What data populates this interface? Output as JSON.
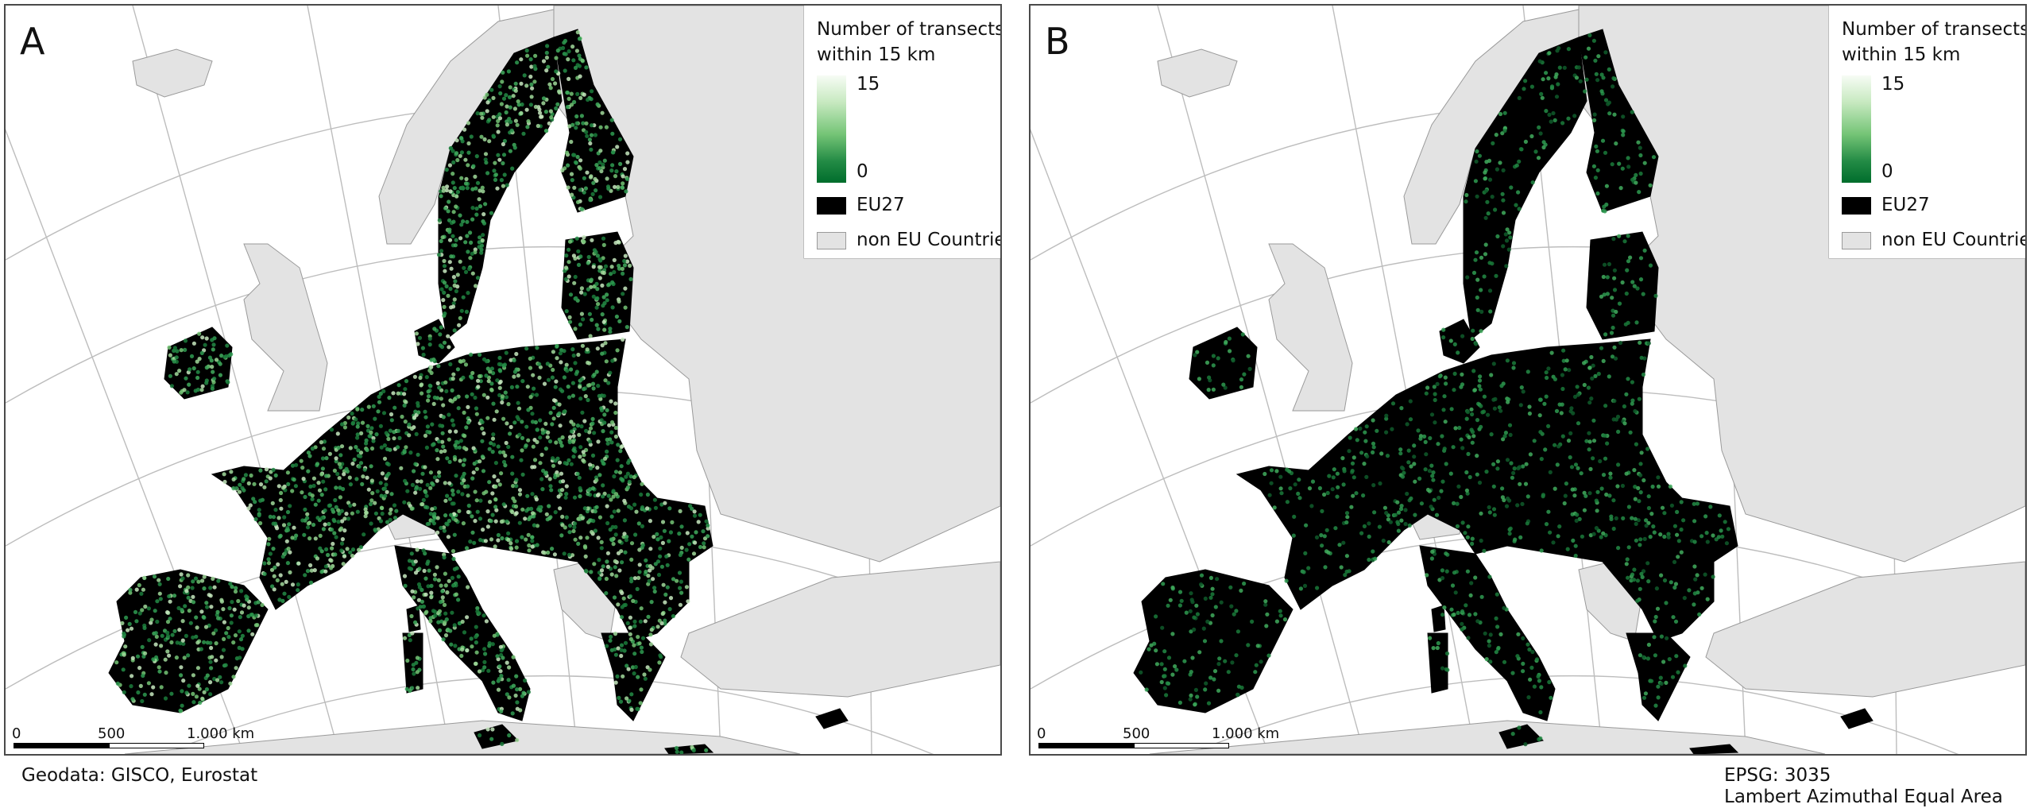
{
  "panels": [
    {
      "letter": "A",
      "legend": {
        "title_line1": "Number of transects",
        "title_line2": "within 15 km",
        "ramp_max": "15",
        "ramp_min": "0",
        "eu_label": "EU27",
        "non_eu_label": "non EU Countries"
      },
      "scale": {
        "t0": "0",
        "t1": "500",
        "t2": "1.000 km"
      },
      "point_density": "high"
    },
    {
      "letter": "B",
      "legend": {
        "title_line1": "Number of transects",
        "title_line2": "within 15 km",
        "ramp_max": "15",
        "ramp_min": "0",
        "eu_label": "EU27",
        "non_eu_label": "non EU Countries"
      },
      "scale": {
        "t0": "0",
        "t1": "500",
        "t2": "1.000 km"
      },
      "point_density": "low"
    }
  ],
  "footer": {
    "source": "Geodata: GISCO, Eurostat",
    "epsg": "EPSG: 3035",
    "projection": "Lambert Azimuthal Equal Area"
  },
  "colors": {
    "eu": "#000000",
    "non_eu": "#e3e3e3",
    "non_eu_border": "#9a9a9a",
    "graticule": "#bdbdbd",
    "ramp_high": "#f7fcf5",
    "ramp_low": "#006d2c"
  }
}
